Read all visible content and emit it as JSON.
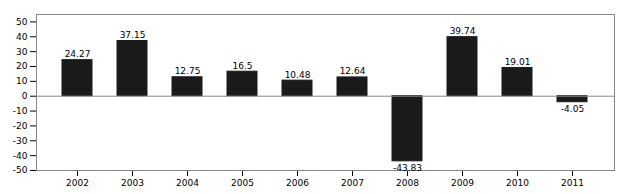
{
  "chart_data": {
    "type": "bar",
    "categories": [
      "2002",
      "2003",
      "2004",
      "2005",
      "2006",
      "2007",
      "2008",
      "2009",
      "2010",
      "2011"
    ],
    "values": [
      24.27,
      37.15,
      12.75,
      16.5,
      10.48,
      12.64,
      -43.83,
      39.74,
      19.01,
      -4.05
    ],
    "color": "#1a1a1a",
    "ylim": [
      -50,
      55
    ],
    "yticks": [
      -50,
      -40,
      -30,
      -20,
      -10,
      0,
      10,
      20,
      30,
      40,
      50
    ],
    "grid": false,
    "data_labels": true
  }
}
